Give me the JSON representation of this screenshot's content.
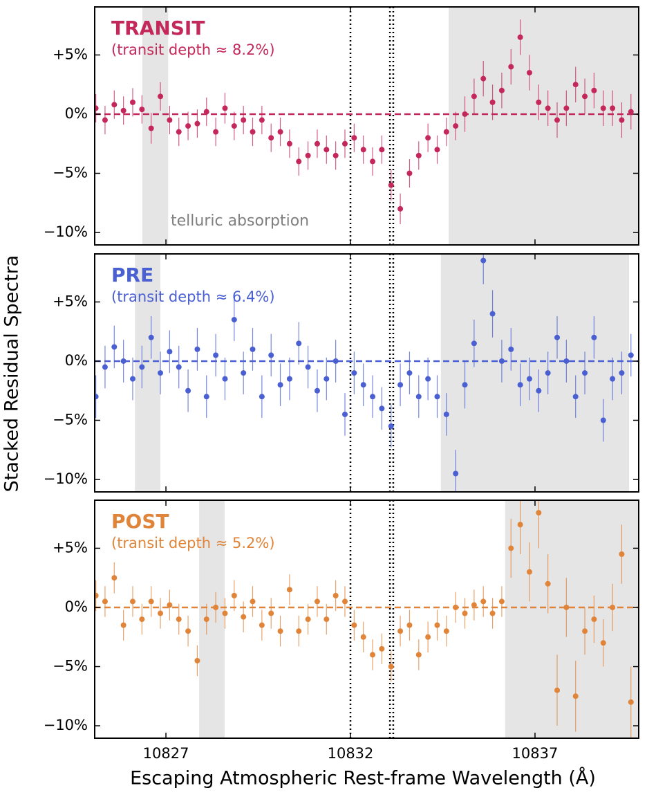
{
  "ylabel": "Stacked Residual Spectra",
  "xlabel": "Escaping Atmospheric Rest-frame Wavelength (Å)",
  "chart_data": [
    {
      "type": "scatter",
      "title": "TRANSIT",
      "subtitle": "(transit depth ≈ 8.2%)",
      "annotation": "telluric absorption",
      "color": "#c4285a",
      "x": [
        10825.1,
        10825.35,
        10825.6,
        10825.85,
        10826.1,
        10826.35,
        10826.6,
        10826.85,
        10827.1,
        10827.35,
        10827.6,
        10827.85,
        10828.1,
        10828.35,
        10828.6,
        10828.85,
        10829.1,
        10829.35,
        10829.6,
        10829.85,
        10830.1,
        10830.35,
        10830.6,
        10830.85,
        10831.1,
        10831.35,
        10831.6,
        10831.85,
        10832.1,
        10832.35,
        10832.6,
        10832.85,
        10833.1,
        10833.35,
        10833.6,
        10833.85,
        10834.1,
        10834.35,
        10834.6,
        10834.85,
        10835.1,
        10835.35,
        10835.6,
        10835.85,
        10836.1,
        10836.35,
        10836.6,
        10836.85,
        10837.1,
        10837.35,
        10837.6,
        10837.85,
        10838.1,
        10838.35,
        10838.6,
        10838.85,
        10839.1,
        10839.35,
        10839.6
      ],
      "values": [
        0.5,
        -0.5,
        0.8,
        0.3,
        1.0,
        0.4,
        -1.2,
        1.5,
        -0.5,
        -1.5,
        -1.0,
        -0.8,
        0.2,
        -1.5,
        0.5,
        -1.0,
        -0.5,
        -1.5,
        -0.5,
        -2.0,
        -1.5,
        -2.5,
        -4.0,
        -3.5,
        -2.5,
        -3.0,
        -3.5,
        -2.5,
        -2.0,
        -3.0,
        -4.0,
        -3.0,
        -6.0,
        -8.0,
        -5.0,
        -3.5,
        -2.0,
        -3.0,
        -1.5,
        -1.0,
        0.0,
        1.5,
        3.0,
        1.0,
        2.0,
        4.0,
        6.5,
        3.5,
        1.0,
        0.5,
        -0.5,
        0.5,
        2.5,
        1.5,
        2.0,
        0.5,
        0.5,
        -0.5,
        0.2
      ],
      "errors": [
        1.2,
        1.2,
        1.2,
        1.2,
        1.2,
        1.2,
        1.3,
        1.2,
        1.2,
        1.2,
        1.2,
        1.2,
        1.2,
        1.2,
        1.3,
        1.2,
        1.2,
        1.2,
        1.2,
        1.2,
        1.2,
        1.2,
        1.2,
        1.2,
        1.2,
        1.2,
        1.2,
        1.2,
        1.2,
        1.2,
        1.2,
        1.2,
        1.3,
        1.3,
        1.2,
        1.2,
        1.2,
        1.2,
        1.2,
        1.2,
        1.5,
        1.5,
        1.5,
        1.5,
        1.5,
        1.5,
        1.5,
        1.5,
        1.5,
        1.5,
        1.5,
        1.5,
        1.5,
        1.5,
        1.5,
        1.5,
        1.5,
        1.5,
        1.5
      ],
      "xlim": [
        10825.07,
        10839.81
      ],
      "ylim": [
        -11.05,
        9.06
      ],
      "yticks": [
        {
          "value": 5,
          "label": "+5%"
        },
        {
          "value": 0,
          "label": "0%"
        },
        {
          "value": -5,
          "label": "−5%"
        },
        {
          "value": -10,
          "label": "−10%"
        }
      ],
      "shaded": [
        [
          10826.36,
          10827.06
        ],
        [
          10834.66,
          10839.81
        ]
      ],
      "vlines": [
        10832.0,
        10833.07,
        10833.16
      ]
    },
    {
      "type": "scatter",
      "title": "PRE",
      "subtitle": "(transit depth ≈ 6.4%)",
      "color": "#4a5fd1",
      "x": [
        10825.1,
        10825.35,
        10825.6,
        10825.85,
        10826.1,
        10826.35,
        10826.6,
        10826.85,
        10827.1,
        10827.35,
        10827.6,
        10827.85,
        10828.1,
        10828.35,
        10828.6,
        10828.85,
        10829.1,
        10829.35,
        10829.6,
        10829.85,
        10830.1,
        10830.35,
        10830.6,
        10830.85,
        10831.1,
        10831.35,
        10831.6,
        10831.85,
        10832.1,
        10832.35,
        10832.6,
        10832.85,
        10833.1,
        10833.35,
        10833.6,
        10833.85,
        10834.1,
        10834.35,
        10834.6,
        10834.85,
        10835.1,
        10835.35,
        10835.6,
        10835.85,
        10836.1,
        10836.35,
        10836.6,
        10836.85,
        10837.1,
        10837.35,
        10837.6,
        10837.85,
        10838.1,
        10838.35,
        10838.6,
        10838.85,
        10839.1,
        10839.35,
        10839.6
      ],
      "values": [
        -3.0,
        -0.5,
        1.2,
        0.0,
        -1.5,
        -0.5,
        2.0,
        -1.0,
        0.8,
        -0.5,
        -2.5,
        1.0,
        -3.0,
        0.5,
        -1.5,
        3.5,
        -1.0,
        1.0,
        -3.0,
        0.5,
        -2.0,
        -1.5,
        1.5,
        -0.5,
        -2.5,
        -1.5,
        0.0,
        -4.5,
        -1.0,
        -2.0,
        -3.0,
        -4.0,
        -5.5,
        -2.0,
        -1.0,
        -3.0,
        -1.5,
        -3.0,
        -4.5,
        -9.5,
        -2.0,
        1.5,
        8.5,
        4.0,
        0.0,
        1.0,
        -2.0,
        -1.5,
        -2.5,
        -1.0,
        2.0,
        0.0,
        -3.0,
        -1.0,
        2.0,
        -5.0,
        -1.5,
        -1.0,
        0.5
      ],
      "errors": [
        1.8,
        1.8,
        1.8,
        1.8,
        1.8,
        1.8,
        1.8,
        1.8,
        1.8,
        1.8,
        1.8,
        1.8,
        1.8,
        1.8,
        1.8,
        1.8,
        1.8,
        1.8,
        1.8,
        1.8,
        1.8,
        1.8,
        1.8,
        1.8,
        1.8,
        1.8,
        1.8,
        1.8,
        1.8,
        1.8,
        1.8,
        1.8,
        1.8,
        1.8,
        1.8,
        1.8,
        1.8,
        1.8,
        1.8,
        2.0,
        2.0,
        2.0,
        2.0,
        2.0,
        1.8,
        1.8,
        1.8,
        1.8,
        1.8,
        1.8,
        1.8,
        1.8,
        1.8,
        1.8,
        1.8,
        1.8,
        1.8,
        1.8,
        1.8
      ],
      "xlim": [
        10825.07,
        10839.81
      ],
      "ylim": [
        -11.05,
        9.06
      ],
      "yticks": [
        {
          "value": 5,
          "label": "+5%"
        },
        {
          "value": 0,
          "label": "0%"
        },
        {
          "value": -5,
          "label": "−5%"
        },
        {
          "value": -10,
          "label": "−10%"
        }
      ],
      "shaded": [
        [
          10826.16,
          10826.85
        ],
        [
          10834.45,
          10839.55
        ]
      ],
      "vlines": [
        10832.0,
        10833.07,
        10833.16
      ]
    },
    {
      "type": "scatter",
      "title": "POST",
      "subtitle": "(transit depth ≈ 5.2%)",
      "color": "#e08439",
      "x": [
        10825.1,
        10825.35,
        10825.6,
        10825.85,
        10826.1,
        10826.35,
        10826.6,
        10826.85,
        10827.1,
        10827.35,
        10827.6,
        10827.85,
        10828.1,
        10828.35,
        10828.6,
        10828.85,
        10829.1,
        10829.35,
        10829.6,
        10829.85,
        10830.1,
        10830.35,
        10830.6,
        10830.85,
        10831.1,
        10831.35,
        10831.6,
        10831.85,
        10832.1,
        10832.35,
        10832.6,
        10832.85,
        10833.1,
        10833.35,
        10833.6,
        10833.85,
        10834.1,
        10834.35,
        10834.6,
        10834.85,
        10835.1,
        10835.35,
        10835.6,
        10835.85,
        10836.1,
        10836.35,
        10836.6,
        10836.85,
        10837.1,
        10837.35,
        10837.6,
        10837.85,
        10838.1,
        10838.35,
        10838.6,
        10838.85,
        10839.1,
        10839.35,
        10839.6
      ],
      "values": [
        1.0,
        0.5,
        2.5,
        -1.5,
        0.5,
        -1.0,
        0.5,
        -0.5,
        0.2,
        -1.0,
        -2.0,
        -4.5,
        -1.0,
        0.0,
        -0.5,
        1.0,
        -0.8,
        0.5,
        -1.5,
        -0.5,
        -2.0,
        1.5,
        -2.0,
        -1.0,
        0.5,
        -1.0,
        1.0,
        0.5,
        -1.5,
        -2.5,
        -4.0,
        -3.5,
        -5.0,
        -2.0,
        -1.5,
        -4.0,
        -2.5,
        -1.5,
        -2.0,
        0.0,
        -0.5,
        0.2,
        0.5,
        -0.5,
        0.5,
        5.0,
        7.0,
        3.0,
        8.0,
        2.0,
        -7.0,
        0.0,
        -7.5,
        -2.0,
        -1.0,
        -3.0,
        0.0,
        4.5,
        -8.0
      ],
      "errors": [
        1.3,
        1.3,
        1.3,
        1.3,
        1.3,
        1.3,
        1.3,
        1.3,
        1.3,
        1.3,
        1.3,
        1.3,
        1.3,
        1.3,
        1.3,
        1.3,
        1.3,
        1.3,
        1.3,
        1.3,
        1.3,
        1.3,
        1.3,
        1.3,
        1.3,
        1.3,
        1.3,
        1.3,
        1.3,
        1.3,
        1.3,
        1.3,
        1.3,
        1.3,
        1.3,
        1.3,
        1.3,
        1.3,
        1.3,
        1.3,
        1.3,
        1.3,
        1.3,
        1.3,
        1.3,
        2.5,
        2.5,
        2.5,
        3.0,
        2.5,
        3.0,
        2.5,
        3.0,
        2.0,
        2.0,
        2.0,
        2.0,
        2.5,
        3.0
      ],
      "xlim": [
        10825.07,
        10839.81
      ],
      "ylim": [
        -11.05,
        9.06
      ],
      "yticks": [
        {
          "value": 5,
          "label": "+5%"
        },
        {
          "value": 0,
          "label": "0%"
        },
        {
          "value": -5,
          "label": "−5%"
        },
        {
          "value": -10,
          "label": "−10%"
        }
      ],
      "xticks": [
        10827,
        10832,
        10837
      ],
      "shaded": [
        [
          10827.9,
          10828.59
        ],
        [
          10836.19,
          10839.81
        ]
      ],
      "vlines": [
        10832.0,
        10833.07,
        10833.16
      ]
    }
  ]
}
